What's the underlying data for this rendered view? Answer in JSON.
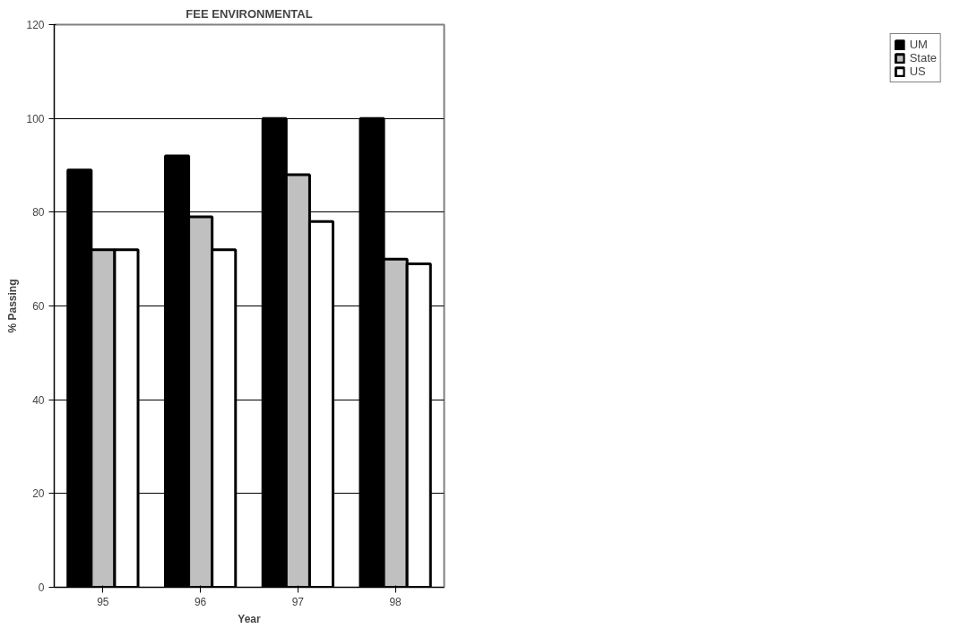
{
  "chart_data": {
    "type": "bar",
    "title": "FEE ENVIRONMENTAL",
    "xlabel": "Year",
    "ylabel": "% Passing",
    "categories": [
      "95",
      "96",
      "97",
      "98"
    ],
    "series": [
      {
        "name": "UM",
        "color": "#000000",
        "values": [
          89,
          92,
          100,
          100
        ]
      },
      {
        "name": "State",
        "color": "#c0c0c0",
        "values": [
          72,
          79,
          88,
          70
        ]
      },
      {
        "name": "US",
        "color": "#ffffff",
        "values": [
          72,
          72,
          78,
          69
        ]
      }
    ],
    "ylim": [
      0,
      120
    ],
    "yticks": [
      0,
      20,
      40,
      60,
      80,
      100,
      120
    ],
    "grid": "y",
    "legend": "right"
  }
}
